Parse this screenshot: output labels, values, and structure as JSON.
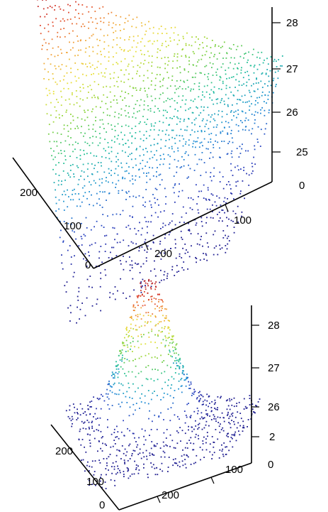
{
  "chart_data": [
    {
      "type": "scatter3d",
      "title": "",
      "z_ticks": [
        "25",
        "26",
        "27",
        "28",
        "0"
      ],
      "x_ticks": [
        "0",
        "100",
        "200"
      ],
      "y_ticks": [
        "100",
        "200"
      ],
      "colormap": [
        "#1e1a8c",
        "#2a3fc0",
        "#1f8fd6",
        "#1fbf9a",
        "#7fd13b",
        "#e8e23a",
        "#f2a23a",
        "#e0442e",
        "#b01e2a"
      ],
      "surface": "wide ridge falling from a high rear-left edge toward a flat low floor at the front"
    },
    {
      "type": "scatter3d",
      "title": "",
      "z_ticks": [
        "2",
        "26",
        "27",
        "28",
        "0"
      ],
      "x_ticks": [
        "0",
        "100",
        "200"
      ],
      "y_ticks": [
        "100",
        "200"
      ],
      "colormap": [
        "#1e1a8c",
        "#2a3fc0",
        "#1f8fd6",
        "#1fbf9a",
        "#7fd13b",
        "#e8e23a",
        "#f2a23a",
        "#e0442e",
        "#b01e2a"
      ],
      "surface": "single narrow peak rising from a flat low floor"
    }
  ]
}
